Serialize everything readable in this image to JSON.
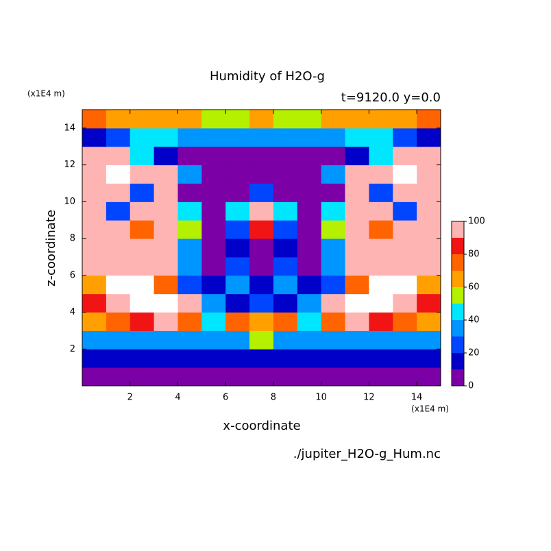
{
  "chart_data": {
    "type": "contour",
    "title": "Humidity of H2O-g",
    "subtitle": "t=9120.0 y=0.0",
    "x_label": "x-coordinate",
    "y_label": "z-coordinate",
    "x_unit": "(x1E4 m)",
    "y_unit": "(x1E4 m)",
    "source": "./jupiter_H2O-g_Hum.nc",
    "xlim": [
      0,
      15
    ],
    "ylim": [
      0,
      15
    ],
    "xticks": [
      2,
      4,
      6,
      8,
      10,
      12,
      14
    ],
    "yticks": [
      2,
      4,
      6,
      8,
      10,
      12,
      14
    ],
    "x": [
      0.5,
      1.5,
      2.5,
      3.5,
      4.5,
      5.5,
      6.5,
      7.5,
      8.5,
      9.5,
      10.5,
      11.5,
      12.5,
      13.5,
      14.5
    ],
    "y": [
      0.5,
      1.5,
      2.5,
      3.5,
      4.5,
      5.5,
      6.5,
      7.5,
      8.5,
      9.5,
      10.5,
      11.5,
      12.5,
      13.5,
      14.5
    ],
    "z": [
      [
        5,
        5,
        5,
        5,
        5,
        5,
        5,
        5,
        5,
        5,
        5,
        5,
        5,
        5,
        5
      ],
      [
        15,
        15,
        15,
        15,
        15,
        15,
        15,
        15,
        15,
        15,
        15,
        15,
        15,
        15,
        15
      ],
      [
        30,
        30,
        30,
        30,
        30,
        30,
        35,
        55,
        35,
        30,
        30,
        30,
        30,
        30,
        30
      ],
      [
        60,
        75,
        85,
        95,
        70,
        45,
        70,
        65,
        70,
        45,
        70,
        95,
        85,
        75,
        60
      ],
      [
        80,
        95,
        105,
        105,
        95,
        35,
        15,
        25,
        15,
        35,
        95,
        105,
        105,
        95,
        80
      ],
      [
        60,
        105,
        105,
        75,
        25,
        10,
        30,
        10,
        30,
        10,
        25,
        75,
        105,
        105,
        60
      ],
      [
        95,
        95,
        95,
        95,
        35,
        5,
        25,
        5,
        25,
        5,
        35,
        95,
        95,
        95,
        95
      ],
      [
        95,
        95,
        95,
        95,
        30,
        5,
        10,
        5,
        10,
        5,
        30,
        95,
        95,
        95,
        95
      ],
      [
        95,
        95,
        75,
        95,
        50,
        5,
        25,
        80,
        25,
        5,
        50,
        95,
        75,
        95,
        95
      ],
      [
        95,
        25,
        95,
        95,
        40,
        5,
        40,
        95,
        40,
        5,
        40,
        95,
        95,
        25,
        95
      ],
      [
        95,
        95,
        25,
        95,
        5,
        5,
        5,
        25,
        5,
        5,
        5,
        95,
        25,
        95,
        95
      ],
      [
        95,
        105,
        95,
        95,
        35,
        5,
        5,
        5,
        5,
        5,
        35,
        95,
        95,
        105,
        95
      ],
      [
        95,
        95,
        40,
        15,
        5,
        5,
        5,
        5,
        5,
        5,
        5,
        15,
        40,
        95,
        95
      ],
      [
        15,
        25,
        40,
        40,
        35,
        35,
        35,
        35,
        35,
        35,
        35,
        40,
        40,
        25,
        15
      ],
      [
        75,
        65,
        65,
        60,
        60,
        55,
        55,
        60,
        55,
        55,
        60,
        60,
        65,
        65,
        75
      ]
    ],
    "levels": [
      0,
      10,
      20,
      30,
      40,
      50,
      60,
      70,
      80,
      90,
      100
    ],
    "colors": [
      "#7b00a5",
      "#0000c8",
      "#0046ff",
      "#0096ff",
      "#00e6ff",
      "#b4f000",
      "#ffa000",
      "#ff6400",
      "#f01414",
      "#ffb4b4"
    ],
    "over_color": "#ffffff",
    "cbar_ticks": [
      0,
      20,
      40,
      60,
      80,
      100
    ]
  }
}
